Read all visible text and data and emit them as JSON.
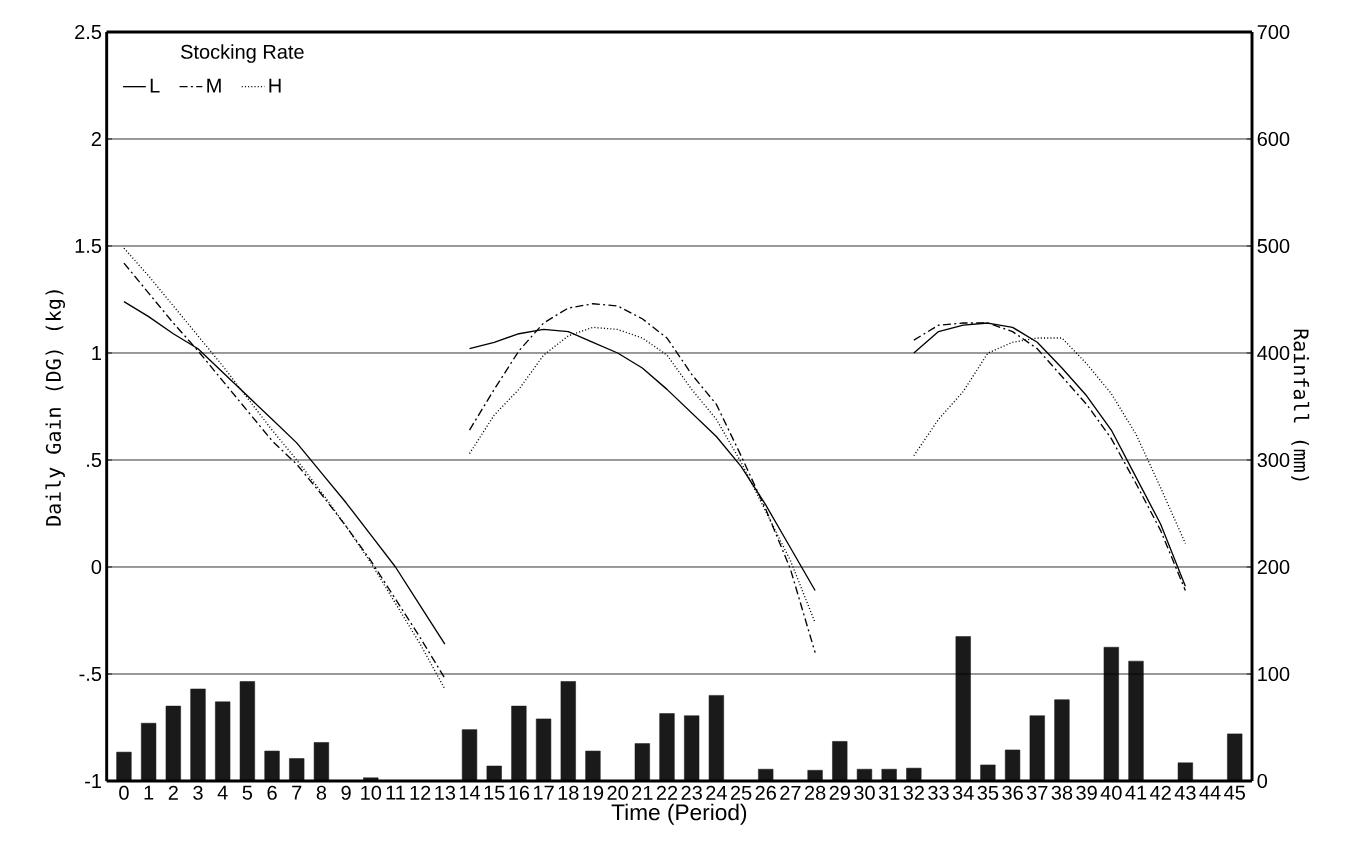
{
  "chart_data": {
    "type": "line",
    "xlabel": "Time (Period)",
    "ylabel": "Daily Gain (DG) (kg)",
    "y2label": "Rainfall (mm)",
    "legend_title": "Stocking Rate",
    "categories": [
      "0",
      "1",
      "2",
      "3",
      "4",
      "5",
      "6",
      "7",
      "8",
      "9",
      "10",
      "11",
      "12",
      "13",
      "14",
      "15",
      "16",
      "17",
      "18",
      "19",
      "20",
      "21",
      "22",
      "23",
      "24",
      "25",
      "26",
      "27",
      "28",
      "29",
      "30",
      "31",
      "32",
      "33",
      "34",
      "35",
      "36",
      "37",
      "38",
      "39",
      "40",
      "41",
      "42",
      "43",
      "44",
      "45"
    ],
    "series": [
      {
        "type": "bar",
        "axis": "y2",
        "color": "#1a1a1a",
        "values": [
          27,
          54,
          70,
          86,
          74,
          93,
          28,
          21,
          36,
          0,
          3,
          0,
          0,
          0,
          48,
          14,
          70,
          58,
          93,
          28,
          null,
          35,
          63,
          61,
          80,
          0,
          11,
          0,
          10,
          37,
          11,
          11,
          12,
          0,
          135,
          15,
          29,
          61,
          76,
          0,
          125,
          112,
          0,
          17,
          0,
          44
        ]
      },
      {
        "name": "L",
        "color": "#000000",
        "line_style": "solid",
        "values": [
          1.24,
          1.17,
          1.09,
          1.02,
          0.91,
          0.8,
          0.69,
          0.58,
          0.44,
          0.3,
          0.15,
          0.0,
          -0.18,
          -0.36,
          null,
          null,
          null,
          null,
          null,
          null,
          null,
          null,
          null,
          null,
          null,
          null,
          null,
          null,
          null,
          null,
          null,
          null,
          null,
          null,
          null,
          null,
          null,
          null,
          null,
          null,
          null,
          null,
          null,
          null,
          null,
          null
        ]
      },
      {
        "name": "M",
        "color": "#000000",
        "line_style": "dashed",
        "values": [
          1.42,
          1.28,
          1.14,
          1.01,
          0.87,
          0.73,
          0.59,
          0.48,
          0.34,
          0.19,
          0.03,
          -0.15,
          -0.33,
          -0.52,
          null,
          null,
          null,
          null,
          null,
          null,
          null,
          null,
          null,
          null,
          null,
          null,
          null,
          null,
          null,
          null,
          null,
          null,
          null,
          null,
          null,
          null,
          null,
          null,
          null,
          null,
          null,
          null,
          null,
          null,
          null,
          null
        ]
      },
      {
        "name": "H",
        "color": "#000000",
        "line_style": "dotted",
        "values": [
          1.49,
          1.36,
          1.22,
          1.08,
          0.94,
          0.79,
          0.64,
          0.5,
          0.35,
          0.19,
          0.02,
          -0.17,
          -0.36,
          -0.57,
          null,
          null,
          null,
          null,
          null,
          null,
          null,
          null,
          null,
          null,
          null,
          null,
          null,
          null,
          null,
          null,
          null,
          null,
          null,
          null,
          null,
          null,
          null,
          null,
          null,
          null,
          null,
          null,
          null,
          null,
          null,
          null
        ]
      },
      {
        "color": "#000000",
        "line_style": "solid",
        "values": [
          null,
          null,
          null,
          null,
          null,
          null,
          null,
          null,
          null,
          null,
          null,
          null,
          null,
          null,
          1.02,
          1.05,
          1.09,
          1.11,
          1.1,
          1.05,
          1.0,
          0.93,
          0.83,
          0.72,
          0.61,
          0.47,
          0.29,
          0.09,
          -0.11,
          null,
          null,
          null,
          null,
          null,
          null,
          null,
          null,
          null,
          null,
          null,
          null,
          null,
          null,
          null,
          null,
          null
        ]
      },
      {
        "color": "#000000",
        "line_style": "dashed",
        "values": [
          null,
          null,
          null,
          null,
          null,
          null,
          null,
          null,
          null,
          null,
          null,
          null,
          null,
          null,
          0.64,
          0.83,
          1.01,
          1.14,
          1.21,
          1.23,
          1.22,
          1.16,
          1.07,
          0.9,
          0.76,
          0.52,
          0.27,
          -0.01,
          -0.4,
          null,
          null,
          null,
          null,
          null,
          null,
          null,
          null,
          null,
          null,
          null,
          null,
          null,
          null,
          null,
          null,
          null
        ]
      },
      {
        "color": "#000000",
        "line_style": "dotted",
        "values": [
          null,
          null,
          null,
          null,
          null,
          null,
          null,
          null,
          null,
          null,
          null,
          null,
          null,
          null,
          0.53,
          0.71,
          0.83,
          0.99,
          1.08,
          1.12,
          1.11,
          1.07,
          0.99,
          0.83,
          0.69,
          0.49,
          0.26,
          0.03,
          -0.26,
          null,
          null,
          null,
          null,
          null,
          null,
          null,
          null,
          null,
          null,
          null,
          null,
          null,
          null,
          null,
          null,
          null
        ]
      },
      {
        "color": "#000000",
        "line_style": "solid",
        "values": [
          null,
          null,
          null,
          null,
          null,
          null,
          null,
          null,
          null,
          null,
          null,
          null,
          null,
          null,
          null,
          null,
          null,
          null,
          null,
          null,
          null,
          null,
          null,
          null,
          null,
          null,
          null,
          null,
          null,
          null,
          null,
          null,
          1.0,
          1.1,
          1.13,
          1.14,
          1.12,
          1.05,
          0.93,
          0.8,
          0.64,
          0.42,
          0.2,
          -0.09,
          null,
          null
        ]
      },
      {
        "color": "#000000",
        "line_style": "dashed",
        "values": [
          null,
          null,
          null,
          null,
          null,
          null,
          null,
          null,
          null,
          null,
          null,
          null,
          null,
          null,
          null,
          null,
          null,
          null,
          null,
          null,
          null,
          null,
          null,
          null,
          null,
          null,
          null,
          null,
          null,
          null,
          null,
          null,
          1.06,
          1.13,
          1.14,
          1.14,
          1.1,
          1.02,
          0.89,
          0.76,
          0.6,
          0.39,
          0.17,
          -0.11,
          null,
          null
        ]
      },
      {
        "color": "#000000",
        "line_style": "dotted",
        "values": [
          null,
          null,
          null,
          null,
          null,
          null,
          null,
          null,
          null,
          null,
          null,
          null,
          null,
          null,
          null,
          null,
          null,
          null,
          null,
          null,
          null,
          null,
          null,
          null,
          null,
          null,
          null,
          null,
          null,
          null,
          null,
          null,
          0.52,
          0.69,
          0.82,
          1.0,
          1.05,
          1.07,
          1.07,
          0.95,
          0.81,
          0.62,
          0.37,
          0.11,
          null,
          null
        ]
      }
    ],
    "ylim": [
      -1,
      2.5
    ],
    "yticks": [
      -1,
      {
        "value": -0.5,
        "label": "-.5"
      },
      0,
      {
        "value": 0.5,
        "label": ".5"
      },
      1,
      1.5,
      2,
      2.5
    ],
    "y2lim": [
      0,
      700
    ],
    "y2ticks": [
      0,
      100,
      200,
      300,
      400,
      500,
      600,
      700
    ],
    "grid": "y",
    "legend": "top left"
  }
}
